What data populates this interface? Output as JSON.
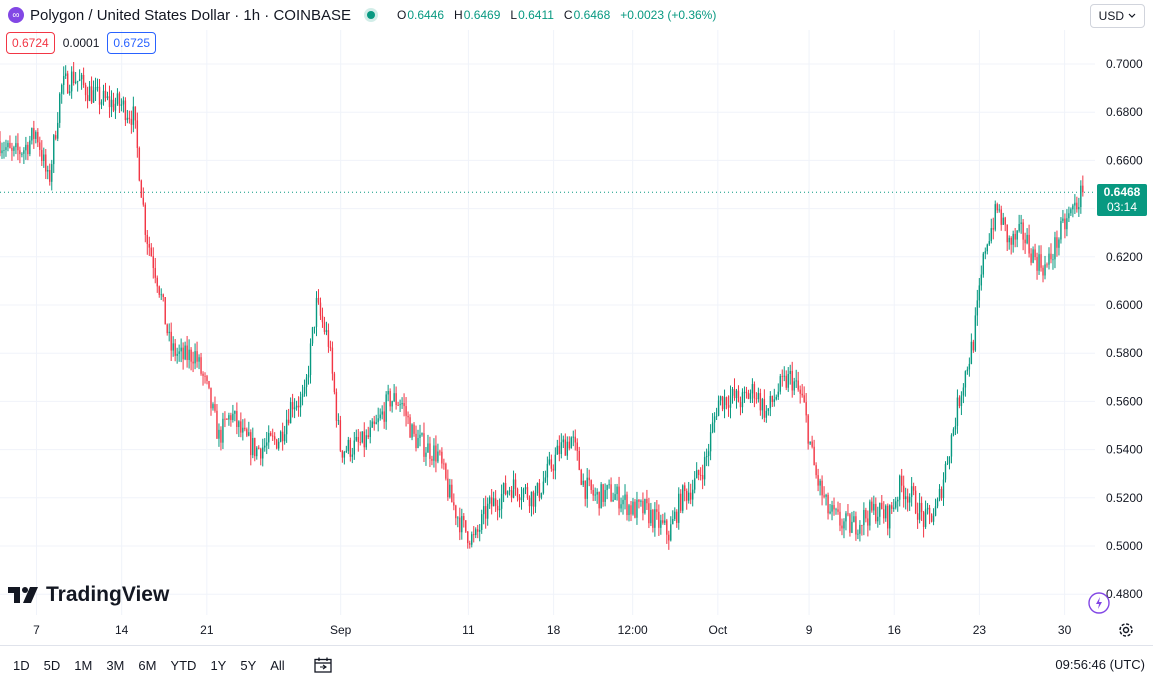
{
  "header": {
    "symbol_title": "Polygon / United States Dollar · 1h · COINBASE",
    "ohlc": {
      "o_label": "O",
      "o": "0.6446",
      "h_label": "H",
      "h": "0.6469",
      "l_label": "L",
      "l": "0.6411",
      "c_label": "C",
      "c": "0.6468",
      "change": "+0.0023 (+0.36%)"
    },
    "currency": "USD"
  },
  "quote": {
    "bid": "0.6724",
    "spread": "0.0001",
    "ask": "0.6725"
  },
  "logo_text": "TradingView",
  "last_price_tag": {
    "price": "0.6468",
    "countdown": "03:14"
  },
  "bottom": {
    "ranges": [
      "1D",
      "5D",
      "1M",
      "3M",
      "6M",
      "YTD",
      "1Y",
      "5Y",
      "All"
    ],
    "clock": "09:56:46 (UTC)"
  },
  "colors": {
    "up": "#089981",
    "down": "#f23645",
    "grid": "#f0f3fa",
    "text": "#131722",
    "brand": "#8247e5"
  },
  "chart_data": {
    "type": "candlestick",
    "title": "Polygon / United States Dollar · 1h · COINBASE",
    "ylim": [
      0.47,
      0.71
    ],
    "y_ticks": [
      "0.7000",
      "0.6800",
      "0.6600",
      "0.6400",
      "0.6200",
      "0.6000",
      "0.5800",
      "0.5600",
      "0.5400",
      "0.5200",
      "0.5000",
      "0.4800"
    ],
    "x_ticks": [
      "7",
      "14",
      "21",
      "Sep",
      "11",
      "18",
      "12:00",
      "Oct",
      "9",
      "16",
      "23",
      "30"
    ],
    "x_tick_index": [
      3.0,
      10.0,
      17.0,
      28.0,
      38.5,
      45.5,
      52.0,
      59.0,
      66.5,
      73.5,
      80.5,
      87.5
    ],
    "x_range": [
      0,
      90
    ],
    "last_price": 0.6468,
    "grid": true,
    "close_path": [
      [
        0,
        0.668
      ],
      [
        1,
        0.662
      ],
      [
        2,
        0.665
      ],
      [
        3,
        0.672
      ],
      [
        4,
        0.65
      ],
      [
        5,
        0.69
      ],
      [
        6,
        0.695
      ],
      [
        7,
        0.69
      ],
      [
        8,
        0.686
      ],
      [
        9,
        0.684
      ],
      [
        10,
        0.683
      ],
      [
        11,
        0.678
      ],
      [
        12,
        0.63
      ],
      [
        13,
        0.61
      ],
      [
        14,
        0.582
      ],
      [
        15,
        0.578
      ],
      [
        16,
        0.58
      ],
      [
        17,
        0.565
      ],
      [
        18,
        0.545
      ],
      [
        19,
        0.555
      ],
      [
        20,
        0.545
      ],
      [
        21,
        0.54
      ],
      [
        22,
        0.542
      ],
      [
        23,
        0.545
      ],
      [
        24,
        0.56
      ],
      [
        25,
        0.56
      ],
      [
        26,
        0.6
      ],
      [
        27,
        0.585
      ],
      [
        28,
        0.54
      ],
      [
        29,
        0.541
      ],
      [
        30,
        0.543
      ],
      [
        31,
        0.55
      ],
      [
        32,
        0.561
      ],
      [
        33,
        0.56
      ],
      [
        34,
        0.545
      ],
      [
        35,
        0.541
      ],
      [
        36,
        0.538
      ],
      [
        37,
        0.52
      ],
      [
        38,
        0.508
      ],
      [
        39,
        0.502
      ],
      [
        40,
        0.515
      ],
      [
        41,
        0.52
      ],
      [
        42,
        0.525
      ],
      [
        43,
        0.523
      ],
      [
        44,
        0.52
      ],
      [
        45,
        0.53
      ],
      [
        46,
        0.54
      ],
      [
        47,
        0.545
      ],
      [
        48,
        0.525
      ],
      [
        49,
        0.52
      ],
      [
        50,
        0.522
      ],
      [
        51,
        0.52
      ],
      [
        52,
        0.515
      ],
      [
        53,
        0.515
      ],
      [
        54,
        0.51
      ],
      [
        55,
        0.505
      ],
      [
        56,
        0.52
      ],
      [
        57,
        0.525
      ],
      [
        58,
        0.535
      ],
      [
        59,
        0.56
      ],
      [
        60,
        0.562
      ],
      [
        61,
        0.56
      ],
      [
        62,
        0.565
      ],
      [
        63,
        0.555
      ],
      [
        64,
        0.565
      ],
      [
        65,
        0.57
      ],
      [
        66,
        0.56
      ],
      [
        67,
        0.53
      ],
      [
        68,
        0.515
      ],
      [
        69,
        0.51
      ],
      [
        70,
        0.508
      ],
      [
        71,
        0.512
      ],
      [
        72,
        0.515
      ],
      [
        73,
        0.512
      ],
      [
        74,
        0.525
      ],
      [
        75,
        0.52
      ],
      [
        76,
        0.51
      ],
      [
        77,
        0.515
      ],
      [
        78,
        0.54
      ],
      [
        79,
        0.565
      ],
      [
        80,
        0.585
      ],
      [
        81,
        0.625
      ],
      [
        82,
        0.64
      ],
      [
        83,
        0.625
      ],
      [
        84,
        0.63
      ],
      [
        85,
        0.62
      ],
      [
        86,
        0.615
      ],
      [
        87,
        0.628
      ],
      [
        88,
        0.638
      ],
      [
        89,
        0.6468
      ]
    ]
  }
}
